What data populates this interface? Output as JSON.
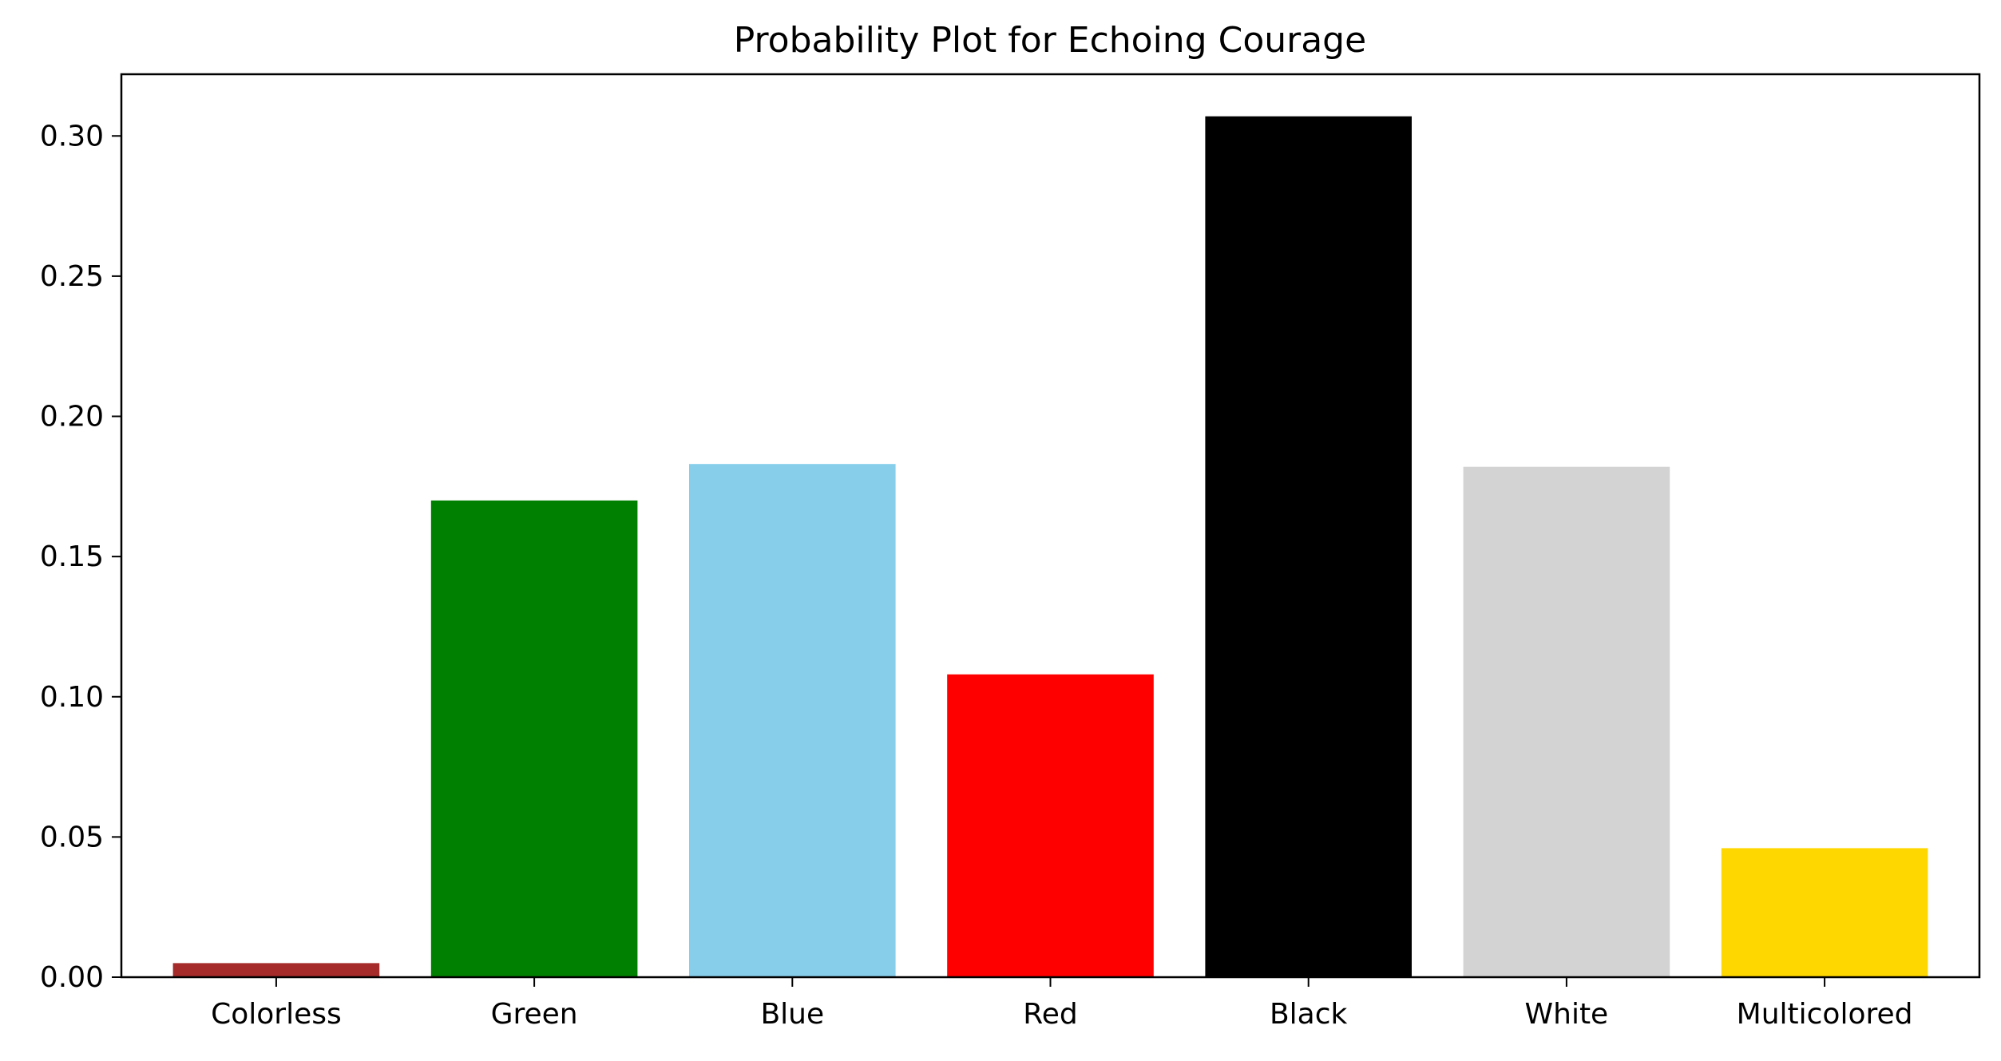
{
  "chart_data": {
    "type": "bar",
    "title": "Probability Plot for Echoing Courage",
    "xlabel": "",
    "ylabel": "",
    "categories": [
      "Colorless",
      "Green",
      "Blue",
      "Red",
      "Black",
      "White",
      "Multicolored"
    ],
    "values": [
      0.005,
      0.17,
      0.183,
      0.108,
      0.307,
      0.182,
      0.046
    ],
    "colors": [
      "#a52a2a",
      "#008000",
      "#87ceeb",
      "#ff0000",
      "#000000",
      "#d3d3d3",
      "#ffd700"
    ],
    "ylim": [
      0,
      0.322
    ],
    "yticks": [
      "0.00",
      "0.05",
      "0.10",
      "0.15",
      "0.20",
      "0.25",
      "0.30"
    ],
    "grid": false,
    "legend": "none"
  }
}
